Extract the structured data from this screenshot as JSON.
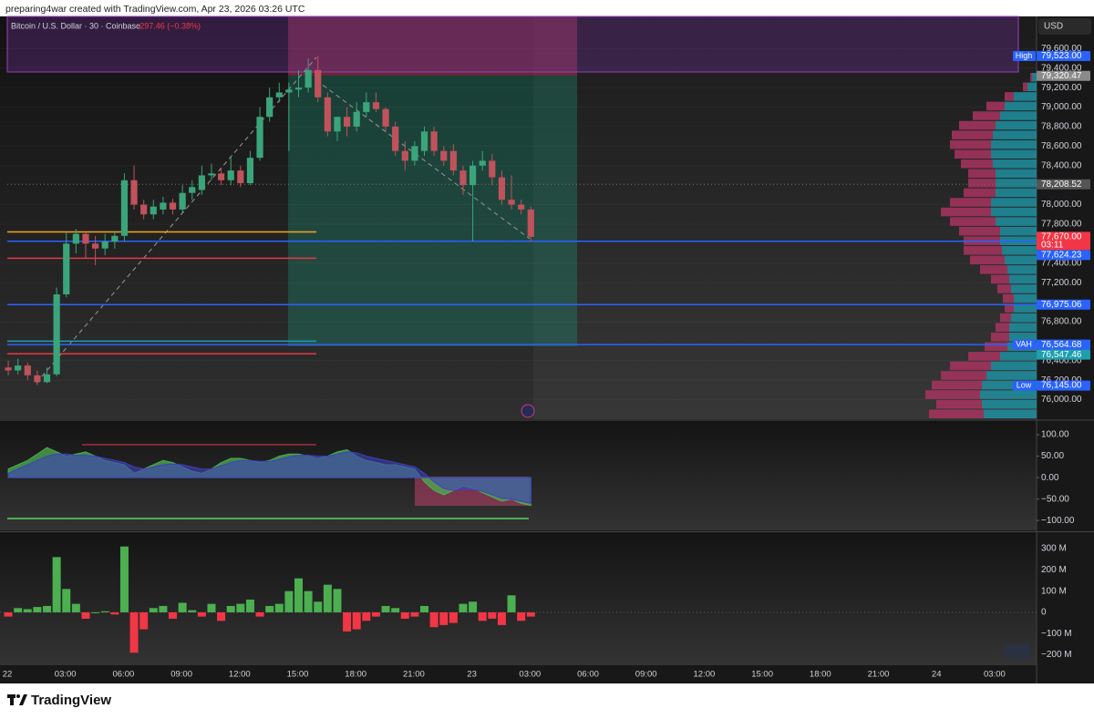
{
  "header": {
    "credit": "preparing4war created with TradingView.com, Apr 23, 2026 03:26 UTC"
  },
  "footer": {
    "brand": "TradingView"
  },
  "chart_data": [
    {
      "type": "candlestick",
      "title": "Bitcoin / U.S. Dollar · 30 · Coinbase",
      "change_label": "−297.46 (−0.38%)",
      "currency": "USD",
      "up_color": "#3aa57a",
      "down_color": "#c0525c",
      "ylim": [
        75800,
        79930
      ],
      "open": [
        76330,
        76300,
        76350,
        76250,
        76180,
        76260,
        77080,
        77600,
        77700,
        77600,
        77550,
        77620,
        77680,
        78250,
        78000,
        77900,
        77950,
        78020,
        77950,
        78120,
        78150,
        78300,
        78320,
        78250,
        78350,
        78220,
        78480,
        78900,
        79100,
        79150,
        79180,
        79200,
        79380,
        79100,
        78750,
        78900,
        78800,
        78950,
        79050,
        78980,
        78800,
        78550,
        78450,
        78550,
        78750,
        78550,
        78550,
        78350,
        78200,
        78400,
        78450,
        78280,
        78050,
        78000,
        77950
      ],
      "high": [
        76400,
        76420,
        76380,
        76300,
        76330,
        77150,
        77720,
        77750,
        77720,
        77680,
        77700,
        77720,
        78320,
        78400,
        78050,
        78050,
        78080,
        78060,
        78200,
        78250,
        78400,
        78420,
        78380,
        78500,
        78400,
        78550,
        79000,
        79200,
        79250,
        79250,
        79380,
        79500,
        79523,
        79150,
        78900,
        79000,
        79050,
        79150,
        79150,
        79000,
        78850,
        78650,
        78650,
        78800,
        78800,
        78600,
        78620,
        78400,
        78450,
        78550,
        78520,
        78350,
        78300,
        78050,
        77980
      ],
      "low": [
        76250,
        76260,
        76200,
        76150,
        76170,
        76240,
        77050,
        77500,
        77450,
        77380,
        77480,
        77550,
        77620,
        77950,
        77850,
        77850,
        77900,
        77900,
        77920,
        78050,
        78100,
        78250,
        78200,
        78200,
        78180,
        78200,
        78450,
        78850,
        79050,
        78550,
        79100,
        79150,
        79050,
        78700,
        78650,
        78700,
        78750,
        78900,
        78950,
        78750,
        78500,
        78350,
        78400,
        78500,
        78500,
        78400,
        78300,
        78100,
        77620,
        78350,
        78200,
        78000,
        77950,
        77900,
        77620
      ],
      "close": [
        76300,
        76350,
        76250,
        76180,
        76260,
        77080,
        77600,
        77700,
        77600,
        77550,
        77620,
        77680,
        78250,
        78000,
        77900,
        77980,
        78020,
        77950,
        78120,
        78180,
        78300,
        78320,
        78250,
        78350,
        78220,
        78480,
        78900,
        79100,
        79150,
        79180,
        79200,
        79380,
        79100,
        78750,
        78900,
        78800,
        78950,
        79050,
        78980,
        78800,
        78550,
        78450,
        78600,
        78750,
        78550,
        78450,
        78350,
        78200,
        78400,
        78450,
        78280,
        78050,
        78000,
        77950,
        77670
      ],
      "yticks": [
        {
          "value": 79600,
          "label": "79,600.00"
        },
        {
          "value": 79400,
          "label": "79,400.00"
        },
        {
          "value": 79200,
          "label": "79,200.00"
        },
        {
          "value": 79000,
          "label": "79,000.00"
        },
        {
          "value": 78800,
          "label": "78,800.00"
        },
        {
          "value": 78600,
          "label": "78,600.00"
        },
        {
          "value": 78400,
          "label": "78,400.00"
        },
        {
          "value": 78000,
          "label": "78,000.00"
        },
        {
          "value": 77800,
          "label": "77,800.00"
        },
        {
          "value": 77400,
          "label": "77,400.00"
        },
        {
          "value": 77200,
          "label": "77,200.00"
        },
        {
          "value": 76800,
          "label": "76,800.00"
        },
        {
          "value": 76400,
          "label": "76,400.00"
        },
        {
          "value": 76200,
          "label": "76,200.00"
        },
        {
          "value": 76000,
          "label": "76,000.00"
        }
      ],
      "price_labels": [
        {
          "value": 79523,
          "label": "79,523.00",
          "tag": "High",
          "color": "#2962ff"
        },
        {
          "value": 79320.47,
          "label": "79,320.47",
          "color": "#8a8a8a"
        },
        {
          "value": 78208.52,
          "label": "78,208.52",
          "color": "#555555"
        },
        {
          "value": 77670,
          "label": "77,670.00",
          "countdown": "03:11",
          "color": "#f23645"
        },
        {
          "value": 77624.23,
          "label": "77,624.23",
          "color": "#2962ff"
        },
        {
          "value": 76975.06,
          "label": "76,975.06",
          "color": "#2962ff"
        },
        {
          "value": 76564.68,
          "label": "76,564.68",
          "tag": "VAH",
          "color": "#2962ff"
        },
        {
          "value": 76547.46,
          "label": "76,547.46",
          "color": "#1f9fae"
        },
        {
          "value": 76145,
          "label": "76,145.00",
          "tag": "Low",
          "color": "#2962ff"
        }
      ],
      "levels": [
        {
          "value": 78208.52,
          "color": "#777777",
          "extent": "full",
          "dashed": true
        },
        {
          "value": 77720,
          "color": "#f5a623",
          "extent": "partial"
        },
        {
          "value": 77624.23,
          "color": "#2962ff",
          "extent": "full"
        },
        {
          "value": 77450,
          "color": "#e53945",
          "extent": "partial"
        },
        {
          "value": 76975.06,
          "color": "#2962ff",
          "extent": "full"
        },
        {
          "value": 76600,
          "color": "#1f9fae",
          "extent": "partial"
        },
        {
          "value": 76564.68,
          "color": "#2962ff",
          "extent": "full"
        },
        {
          "value": 76470,
          "color": "#e53945",
          "extent": "partial"
        }
      ],
      "volume_profile": {
        "up": [
          5,
          10,
          25,
          35,
          40,
          45,
          48,
          50,
          50,
          48,
          45,
          45,
          45,
          50,
          50,
          45,
          40,
          40,
          38,
          35,
          32,
          30,
          28,
          25,
          25,
          28,
          30,
          30,
          32,
          40,
          50,
          55,
          60,
          62,
          60,
          58
        ],
        "down": [
          2,
          5,
          10,
          20,
          30,
          40,
          45,
          45,
          40,
          35,
          30,
          30,
          35,
          45,
          55,
          50,
          45,
          40,
          42,
          38,
          30,
          20,
          15,
          12,
          10,
          12,
          15,
          20,
          25,
          35,
          45,
          50,
          55,
          60,
          50,
          60
        ],
        "up_color": "#1f8fa0",
        "down_color": "#a8345f"
      },
      "xticks": [
        "22",
        "03:00",
        "06:00",
        "09:00",
        "12:00",
        "15:00",
        "18:00",
        "21:00",
        "23",
        "03:00",
        "06:00",
        "09:00",
        "12:00",
        "15:00",
        "18:00",
        "21:00",
        "24",
        "03:00"
      ]
    },
    {
      "type": "oscillator",
      "ylim": [
        -123,
        132
      ],
      "fast": [
        20,
        30,
        40,
        55,
        70,
        60,
        50,
        55,
        60,
        50,
        40,
        35,
        30,
        10,
        20,
        30,
        40,
        35,
        25,
        15,
        10,
        20,
        35,
        45,
        45,
        40,
        35,
        40,
        50,
        55,
        55,
        50,
        45,
        50,
        60,
        65,
        50,
        40,
        35,
        30,
        30,
        25,
        20,
        -10,
        -30,
        -40,
        -30,
        -20,
        -25,
        -35,
        -45,
        -55,
        -50,
        -60,
        -65
      ],
      "slow": [
        10,
        20,
        30,
        40,
        50,
        55,
        55,
        52,
        52,
        50,
        45,
        40,
        35,
        25,
        20,
        25,
        30,
        32,
        30,
        25,
        20,
        20,
        28,
        35,
        40,
        40,
        38,
        38,
        42,
        48,
        52,
        52,
        50,
        50,
        55,
        60,
        58,
        50,
        45,
        40,
        35,
        30,
        25,
        10,
        -10,
        -25,
        -30,
        -28,
        -28,
        -32,
        -40,
        -48,
        -50,
        -55,
        -60
      ],
      "fast_color": "#4caf50",
      "slow_color": "#3f3fbf",
      "yticks": [
        {
          "value": 100,
          "label": "100.00"
        },
        {
          "value": 50,
          "label": "50.00"
        },
        {
          "value": 0,
          "label": "0.00"
        },
        {
          "value": -50,
          "label": "−50.00"
        },
        {
          "value": -100,
          "label": "−100.00"
        }
      ]
    },
    {
      "type": "bar",
      "ylim": [
        -249,
        373
      ],
      "values": [
        -20,
        20,
        15,
        25,
        30,
        260,
        110,
        40,
        -30,
        0,
        5,
        -10,
        310,
        -190,
        -80,
        20,
        30,
        -30,
        45,
        10,
        -20,
        40,
        -40,
        30,
        40,
        60,
        -20,
        30,
        40,
        100,
        160,
        100,
        50,
        130,
        110,
        -90,
        -80,
        -40,
        -20,
        30,
        20,
        -30,
        -20,
        30,
        -70,
        -60,
        -50,
        40,
        50,
        -40,
        -30,
        -60,
        80,
        -40,
        -20
      ],
      "up_color": "#4caf50",
      "down_color": "#f23645",
      "yticks": [
        {
          "value": 300,
          "label": "300 M"
        },
        {
          "value": 200,
          "label": "200 M"
        },
        {
          "value": 100,
          "label": "100 M"
        },
        0,
        {
          "value": -100,
          "label": "−100 M"
        },
        {
          "value": -200,
          "label": "−200 M"
        }
      ]
    }
  ]
}
